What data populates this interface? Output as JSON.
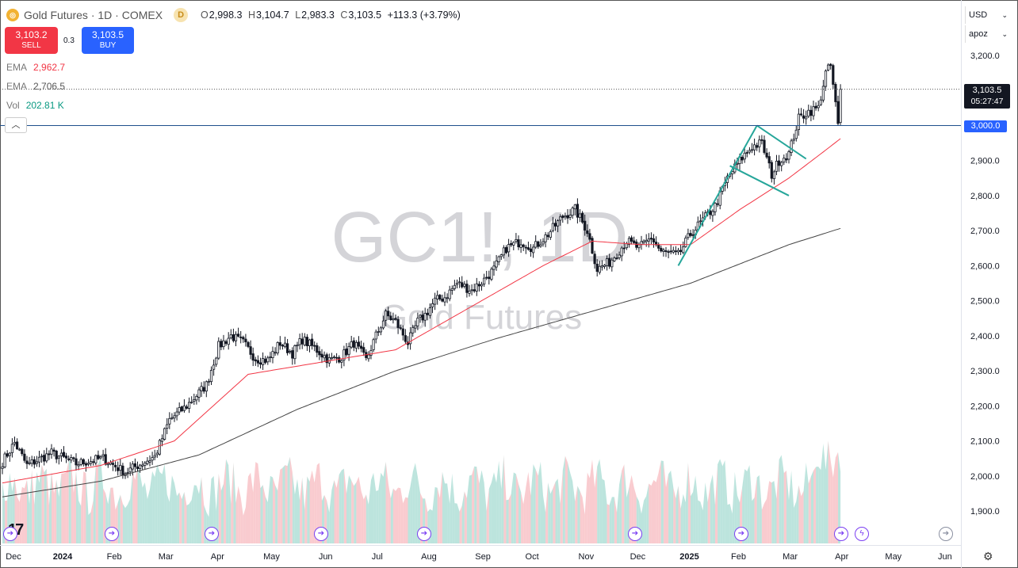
{
  "header": {
    "title": "Gold Futures · 1D · COMEX",
    "badge": "D",
    "open_label": "O",
    "open": "2,998.3",
    "high_label": "H",
    "high": "3,104.7",
    "low_label": "L",
    "low": "2,983.3",
    "close_label": "C",
    "close": "3,103.5",
    "change": "+113.3 (+3.79%)"
  },
  "trade": {
    "sell_price": "3,103.2",
    "sell_label": "SELL",
    "spread": "0.3",
    "buy_price": "3,103.5",
    "buy_label": "BUY"
  },
  "indicators": [
    {
      "name": "EMA",
      "value": "2,962.7",
      "color": "#f23645"
    },
    {
      "name": "EMA",
      "value": "2,706.5",
      "color": "#555555"
    },
    {
      "name": "Vol",
      "value": "202.81 K",
      "color": "#089981"
    }
  ],
  "axis_controls": {
    "currency": "USD",
    "scale": "apoz"
  },
  "price_tags": {
    "last_price": "3,103.5",
    "countdown": "05:27:47",
    "level": "3,000.0"
  },
  "watermark": {
    "symbol": "GC1!, 1D",
    "name": "Gold Futures"
  },
  "icons": {
    "logo": "tradingview-logo",
    "settings": "gear-icon",
    "event": "arrow-circle-icon",
    "flash": "lightning-icon"
  },
  "colors": {
    "up": "#089981",
    "down": "#f23645",
    "ema_fast": "#f23645",
    "ema_slow": "#444444",
    "channel": "#26a69a",
    "level_line": "#2962ff"
  },
  "chart_data": {
    "type": "candlestick",
    "yaxis": {
      "ylim": [
        1860,
        3240
      ],
      "ticks": [
        "3,200.0",
        "3,100.0",
        "3,000.0",
        "2,900.0",
        "2,800.0",
        "2,700.0",
        "2,600.0",
        "2,500.0",
        "2,400.0",
        "2,300.0",
        "2,200.0",
        "2,100.0",
        "2,000.0",
        "1,900.0"
      ]
    },
    "xaxis": {
      "labels": [
        "Dec",
        "2024",
        "Feb",
        "Mar",
        "Apr",
        "May",
        "Jun",
        "Jul",
        "Aug",
        "Sep",
        "Oct",
        "Nov",
        "Dec",
        "2025",
        "Feb",
        "Mar",
        "Apr",
        "May",
        "Jun"
      ],
      "label_index": [
        0,
        20,
        41,
        62,
        83,
        105,
        127,
        148,
        169,
        191,
        211,
        233,
        254,
        275,
        295,
        316,
        337,
        358,
        379
      ]
    },
    "last_index": 341,
    "price_anchors": [
      [
        0,
        2040
      ],
      [
        5,
        2095
      ],
      [
        10,
        2030
      ],
      [
        20,
        2065
      ],
      [
        30,
        2035
      ],
      [
        41,
        2050
      ],
      [
        50,
        2010
      ],
      [
        55,
        2030
      ],
      [
        62,
        2055
      ],
      [
        68,
        2160
      ],
      [
        75,
        2200
      ],
      [
        83,
        2260
      ],
      [
        88,
        2370
      ],
      [
        93,
        2400
      ],
      [
        98,
        2380
      ],
      [
        103,
        2335
      ],
      [
        108,
        2330
      ],
      [
        113,
        2380
      ],
      [
        118,
        2350
      ],
      [
        122,
        2390
      ],
      [
        127,
        2365
      ],
      [
        133,
        2330
      ],
      [
        138,
        2340
      ],
      [
        143,
        2380
      ],
      [
        148,
        2330
      ],
      [
        152,
        2400
      ],
      [
        156,
        2460
      ],
      [
        160,
        2440
      ],
      [
        165,
        2380
      ],
      [
        169,
        2440
      ],
      [
        172,
        2460
      ],
      [
        176,
        2500
      ],
      [
        180,
        2510
      ],
      [
        185,
        2550
      ],
      [
        191,
        2530
      ],
      [
        196,
        2560
      ],
      [
        200,
        2590
      ],
      [
        205,
        2650
      ],
      [
        211,
        2670
      ],
      [
        216,
        2650
      ],
      [
        222,
        2690
      ],
      [
        228,
        2740
      ],
      [
        233,
        2760
      ],
      [
        238,
        2700
      ],
      [
        242,
        2590
      ],
      [
        247,
        2610
      ],
      [
        254,
        2670
      ],
      [
        259,
        2650
      ],
      [
        264,
        2680
      ],
      [
        268,
        2640
      ],
      [
        275,
        2630
      ],
      [
        280,
        2690
      ],
      [
        285,
        2730
      ],
      [
        290,
        2770
      ],
      [
        295,
        2850
      ],
      [
        300,
        2900
      ],
      [
        305,
        2940
      ],
      [
        309,
        2950
      ],
      [
        313,
        2860
      ],
      [
        316,
        2900
      ],
      [
        320,
        2920
      ],
      [
        324,
        3020
      ],
      [
        328,
        3040
      ],
      [
        332,
        3050
      ],
      [
        335,
        3150
      ],
      [
        337,
        3170
      ],
      [
        339,
        3060
      ],
      [
        340,
        3000
      ],
      [
        341,
        3103.5
      ]
    ],
    "ema_fast_anchors": [
      [
        0,
        1980
      ],
      [
        40,
        2030
      ],
      [
        70,
        2100
      ],
      [
        100,
        2290
      ],
      [
        130,
        2325
      ],
      [
        160,
        2360
      ],
      [
        190,
        2480
      ],
      [
        220,
        2600
      ],
      [
        240,
        2670
      ],
      [
        260,
        2660
      ],
      [
        280,
        2660
      ],
      [
        300,
        2760
      ],
      [
        320,
        2850
      ],
      [
        335,
        2930
      ],
      [
        341,
        2962.7
      ]
    ],
    "ema_slow_anchors": [
      [
        0,
        1940
      ],
      [
        40,
        1985
      ],
      [
        80,
        2060
      ],
      [
        120,
        2190
      ],
      [
        160,
        2300
      ],
      [
        200,
        2390
      ],
      [
        240,
        2470
      ],
      [
        280,
        2550
      ],
      [
        320,
        2660
      ],
      [
        341,
        2706.5
      ]
    ],
    "channel_lines": [
      {
        "from": [
          275,
          2600
        ],
        "to": [
          307,
          3000
        ]
      },
      {
        "from": [
          307,
          3000
        ],
        "to": [
          327,
          2905
        ]
      },
      {
        "from": [
          296,
          2885
        ],
        "to": [
          320,
          2800
        ]
      }
    ],
    "volume": {
      "range": [
        0,
        1
      ],
      "bars_shown": "per candle"
    }
  }
}
